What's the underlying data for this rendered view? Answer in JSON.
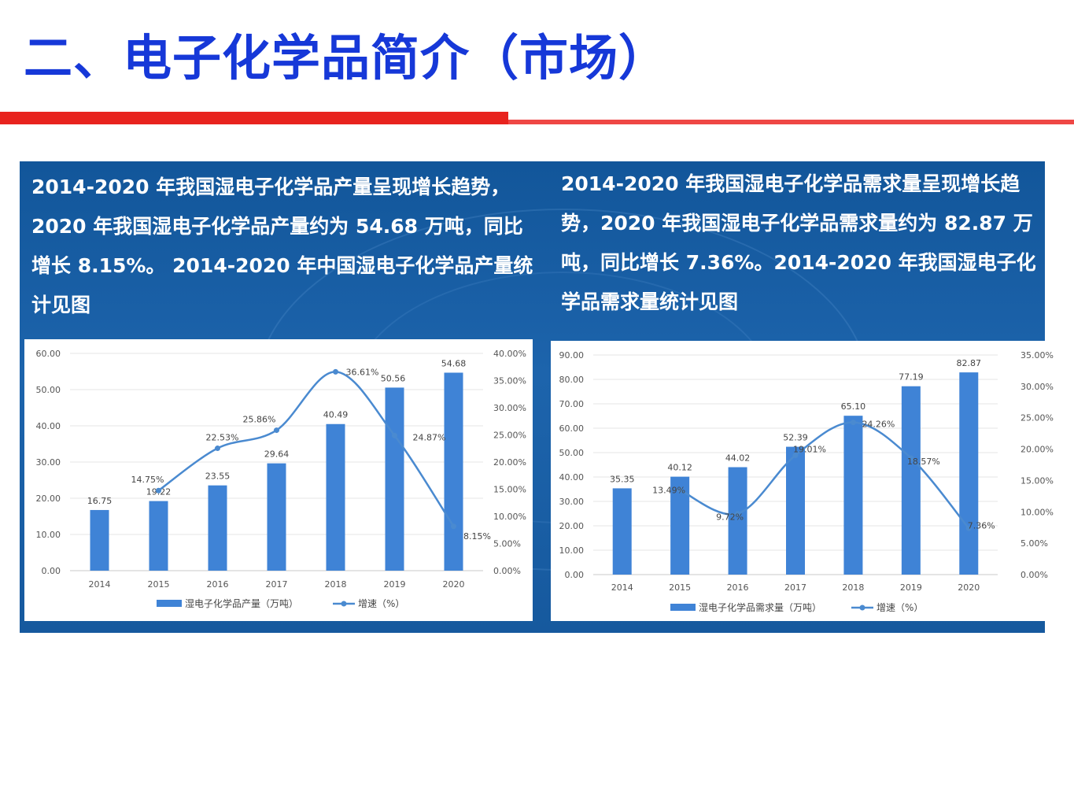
{
  "header": {
    "title": "二、电子化学品简介（市场）"
  },
  "colors": {
    "title": "#1638d8",
    "rule": "#e8231e",
    "panel": "#1a5fa6",
    "bar": "#3f83d6",
    "line": "#4a8ad0"
  },
  "panels": {
    "left_text": "2014-2020 年我国湿电子化学品产量呈现增长趋势，2020 年我国湿电子化学品产量约为 54.68 万吨，同比增长 8.15%。 2014-2020 年中国湿电子化学品产量统计见图",
    "right_text": "2014-2020 年我国湿电子化学品需求量呈现增长趋势，2020 年我国湿电子化学品需求量约为 82.87 万吨，同比增长 7.36%。2014-2020 年我国湿电子化学品需求量统计见图"
  },
  "chart_data": [
    {
      "type": "bar",
      "categories": [
        "2014",
        "2015",
        "2016",
        "2017",
        "2018",
        "2019",
        "2020"
      ],
      "series": [
        {
          "name": "湿电子化学品产量（万吨）",
          "type": "bar",
          "axis": "left",
          "values": [
            16.75,
            19.22,
            23.55,
            29.64,
            40.49,
            50.56,
            54.68
          ],
          "labels": [
            "16.75",
            "19.22",
            "23.55",
            "29.64",
            "40.49",
            "50.56",
            "54.68"
          ]
        },
        {
          "name": "增速（%）",
          "type": "line",
          "axis": "right",
          "values": [
            null,
            14.75,
            22.53,
            25.86,
            36.61,
            24.87,
            8.15
          ],
          "labels": [
            "",
            "14.75%",
            "22.53%",
            "25.86%",
            "36.61%",
            "24.87%",
            "8.15%"
          ]
        }
      ],
      "ylim": [
        0,
        60
      ],
      "yticks": [
        "0.00",
        "10.00",
        "20.00",
        "30.00",
        "40.00",
        "50.00",
        "60.00"
      ],
      "y2lim": [
        0,
        40
      ],
      "y2ticks": [
        "0.00%",
        "5.00%",
        "10.00%",
        "15.00%",
        "20.00%",
        "25.00%",
        "30.00%",
        "35.00%",
        "40.00%"
      ],
      "grid": true,
      "legend_position": "bottom"
    },
    {
      "type": "bar",
      "categories": [
        "2014",
        "2015",
        "2016",
        "2017",
        "2018",
        "2019",
        "2020"
      ],
      "series": [
        {
          "name": "湿电子化学品需求量（万吨）",
          "type": "bar",
          "axis": "left",
          "values": [
            35.35,
            40.12,
            44.02,
            52.39,
            65.1,
            77.19,
            82.87
          ],
          "labels": [
            "35.35",
            "40.12",
            "44.02",
            "52.39",
            "65.10",
            "77.19",
            "82.87"
          ]
        },
        {
          "name": "增速（%）",
          "type": "line",
          "axis": "right",
          "values": [
            null,
            13.49,
            9.72,
            19.01,
            24.26,
            18.57,
            7.36
          ],
          "labels": [
            "",
            "13.49%",
            "9.72%",
            "19.01%",
            "24.26%",
            "18.57%",
            "7.36%"
          ]
        }
      ],
      "ylim": [
        0,
        90
      ],
      "yticks": [
        "0.00",
        "10.00",
        "20.00",
        "30.00",
        "40.00",
        "50.00",
        "60.00",
        "70.00",
        "80.00",
        "90.00"
      ],
      "y2lim": [
        0,
        35
      ],
      "y2ticks": [
        "0.00%",
        "5.00%",
        "10.00%",
        "15.00%",
        "20.00%",
        "25.00%",
        "30.00%",
        "35.00%"
      ],
      "grid": true,
      "legend_position": "bottom"
    }
  ]
}
